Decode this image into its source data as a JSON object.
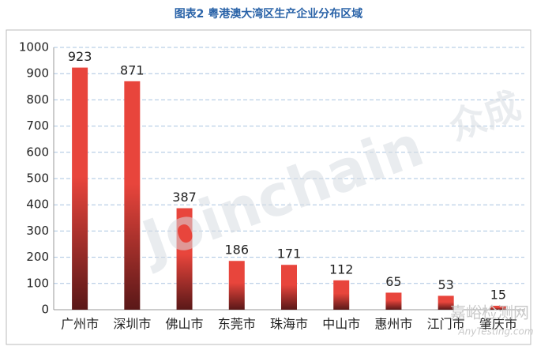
{
  "chart_data": {
    "type": "bar",
    "title": "图表2  粤港澳大湾区生产企业分布区域",
    "categories": [
      "广州市",
      "深圳市",
      "佛山市",
      "东莞市",
      "珠海市",
      "中山市",
      "惠州市",
      "江门市",
      "肇庆市"
    ],
    "values": [
      923,
      871,
      387,
      186,
      171,
      112,
      65,
      53,
      15
    ],
    "color": "#e8453c",
    "ylim": [
      0,
      1000
    ],
    "yticks": [
      0,
      100,
      200,
      300,
      400,
      500,
      600,
      700,
      800,
      900,
      1000
    ],
    "grid": true,
    "watermarks": [
      "Joinchain",
      "众成",
      "嘉峪检测网",
      "AnyTesting.com"
    ]
  }
}
